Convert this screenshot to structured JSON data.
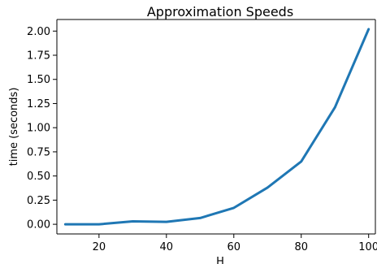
{
  "chart_data": {
    "type": "line",
    "title": "Approximation Speeds",
    "xlabel": "H",
    "ylabel": "time (seconds)",
    "x": [
      10,
      20,
      30,
      40,
      50,
      60,
      70,
      80,
      90,
      100
    ],
    "series": [
      {
        "values": [
          0.0,
          0.0,
          0.03,
          0.025,
          0.065,
          0.17,
          0.38,
          0.65,
          1.21,
          2.02
        ],
        "color": "#1f77b4"
      }
    ],
    "xlim": [
      7.5,
      102.0
    ],
    "ylim": [
      -0.1,
      2.12
    ],
    "xticks": [
      20,
      40,
      60,
      80,
      100
    ],
    "xtick_labels": [
      "20",
      "40",
      "60",
      "80",
      "100"
    ],
    "yticks": [
      0.0,
      0.25,
      0.5,
      0.75,
      1.0,
      1.25,
      1.5,
      1.75,
      2.0
    ],
    "ytick_labels": [
      "0.00",
      "0.25",
      "0.50",
      "0.75",
      "1.00",
      "1.25",
      "1.50",
      "1.75",
      "2.00"
    ],
    "grid": false,
    "legend": "none"
  }
}
